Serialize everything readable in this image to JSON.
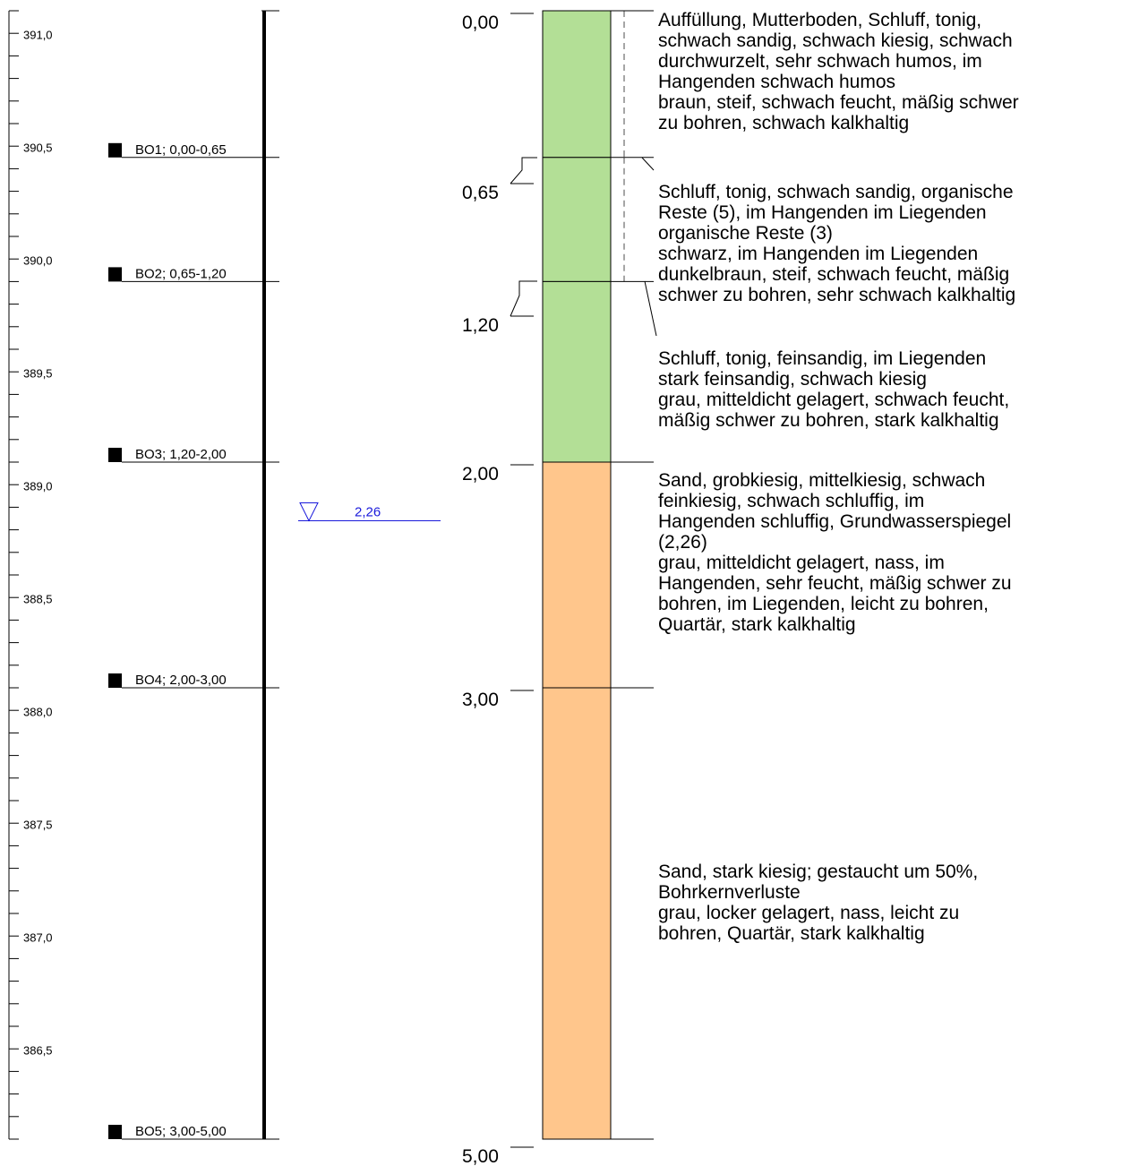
{
  "elevation_scale": {
    "labels": [
      "391,0",
      "390,5",
      "390,0",
      "389,5",
      "389,0",
      "388,5",
      "388,0",
      "387,5",
      "387,0",
      "386,5"
    ],
    "top_elevation": 391.14,
    "bottom_elevation": 386.14,
    "step": 0.1
  },
  "samples": [
    {
      "label": "BO1; 0,00-0,65",
      "depth": 0.65
    },
    {
      "label": "BO2; 0,65-1,20",
      "depth": 1.2
    },
    {
      "label": "BO3; 1,20-2,00",
      "depth": 2.0
    },
    {
      "label": "BO4; 2,00-3,00",
      "depth": 3.0
    },
    {
      "label": "BO5; 3,00-5,00",
      "depth": 5.0
    }
  ],
  "groundwater": {
    "label": "2,26",
    "depth": 2.26,
    "color": "#1a1adb"
  },
  "depth_labels": [
    {
      "text": "0,00",
      "depth": 0.0
    },
    {
      "text": "0,65",
      "depth": 0.65
    },
    {
      "text": "1,20",
      "depth": 1.2
    },
    {
      "text": "2,00",
      "depth": 2.0
    },
    {
      "text": "3,00",
      "depth": 3.0
    },
    {
      "text": "5,00",
      "depth": 5.0
    }
  ],
  "layers": [
    {
      "top": 0.0,
      "bottom": 0.65,
      "color": "#b3df96",
      "pattern": "fill",
      "side": "dashed"
    },
    {
      "top": 0.65,
      "bottom": 1.2,
      "color": "#b3df96",
      "pattern": "silt",
      "side": "dashed"
    },
    {
      "top": 1.2,
      "bottom": 2.0,
      "color": "#b3df96",
      "pattern": "silt",
      "side": "circles"
    },
    {
      "top": 2.0,
      "bottom": 3.0,
      "color": "#ffc68c",
      "pattern": "sand",
      "side": "dense"
    },
    {
      "top": 3.0,
      "bottom": 5.0,
      "color": "#ffc68c",
      "pattern": "sand",
      "side": "loose"
    }
  ],
  "descriptions": [
    {
      "lines": [
        "Auffüllung, Mutterboden, Schluff, tonig,",
        "schwach sandig, schwach kiesig, schwach",
        "durchwurzelt, sehr schwach humos, im",
        "Hangenden schwach humos",
        "braun, steif, schwach feucht, mäßig schwer",
        "zu bohren, schwach kalkhaltig"
      ]
    },
    {
      "lines": [
        "Schluff, tonig, schwach sandig, organische",
        "Reste (5), im Hangenden im Liegenden",
        "organische Reste (3)",
        "schwarz, im Hangenden im Liegenden",
        "dunkelbraun, steif, schwach feucht, mäßig",
        "schwer zu bohren, sehr schwach kalkhaltig"
      ]
    },
    {
      "lines": [
        "Schluff, tonig, feinsandig, im Liegenden",
        "stark feinsandig, schwach kiesig",
        "grau, mitteldicht gelagert, schwach feucht,",
        "mäßig schwer zu bohren, stark kalkhaltig"
      ]
    },
    {
      "lines": [
        "Sand, grobkiesig, mittelkiesig, schwach",
        "feinkiesig, schwach schluffig, im",
        "Hangenden schluffig, Grundwasserspiegel",
        "(2,26)",
        "grau, mitteldicht gelagert, nass, im",
        "Hangenden, sehr feucht, mäßig schwer zu",
        "bohren, im Liegenden, leicht zu bohren,",
        "Quartär, stark kalkhaltig"
      ]
    },
    {
      "lines": [
        "Sand, stark kiesig; gestaucht um 50%,",
        "Bohrkernverluste",
        "grau, locker gelagert, nass, leicht zu",
        "bohren, Quartär, stark kalkhaltig"
      ]
    }
  ]
}
